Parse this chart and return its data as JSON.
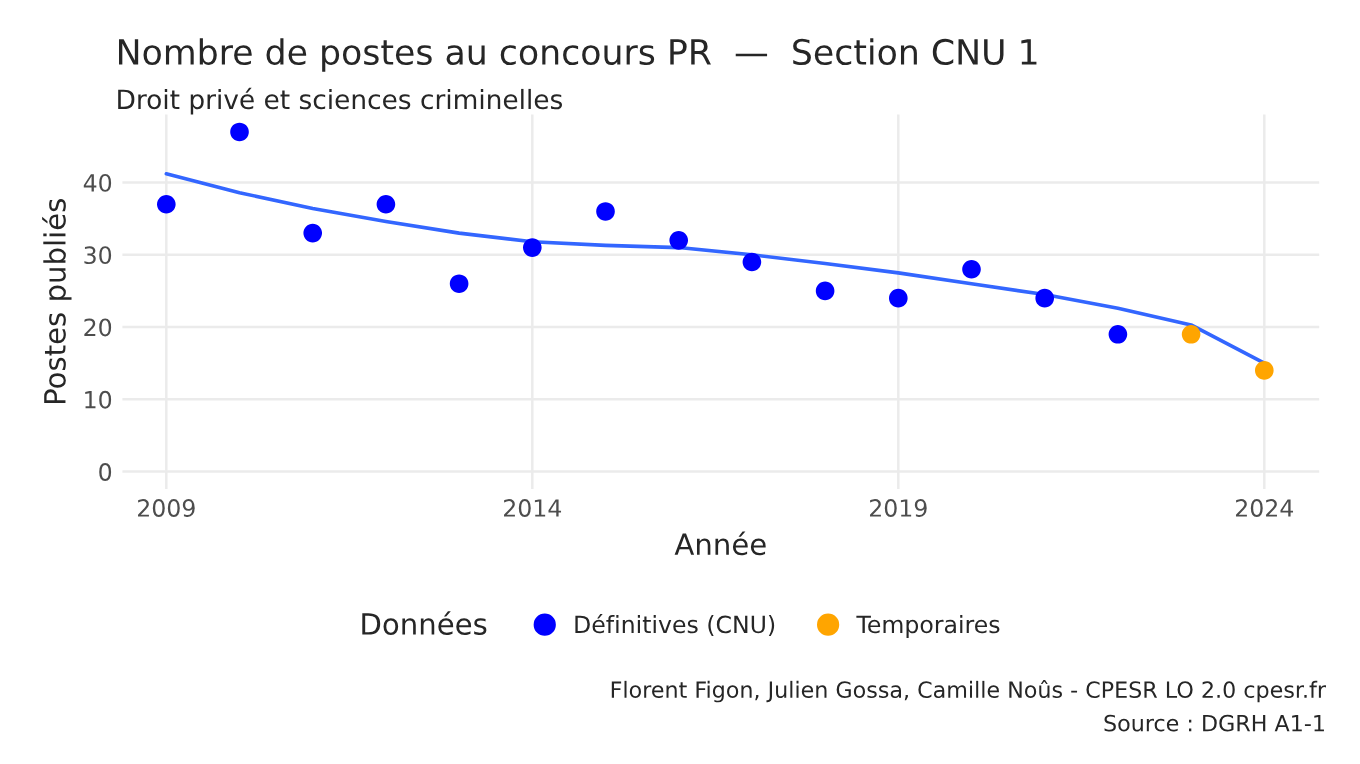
{
  "chart_data": {
    "type": "scatter",
    "title": "Nombre de postes au concours PR  —  Section CNU 1",
    "subtitle": "Droit privé et sciences criminelles",
    "xlabel": "Année",
    "ylabel": "Postes publiés",
    "legend_title": "Données",
    "series": [
      {
        "name": "Définitives (CNU)",
        "color": "#0000ff",
        "marker": "circle",
        "x": [
          2009,
          2010,
          2011,
          2012,
          2013,
          2014,
          2015,
          2016,
          2017,
          2018,
          2019,
          2020,
          2021,
          2022
        ],
        "values": [
          37,
          47,
          33,
          37,
          26,
          31,
          36,
          32,
          29,
          25,
          24,
          28,
          24,
          19
        ]
      },
      {
        "name": "Temporaires",
        "color": "#ffa500",
        "marker": "circle",
        "x": [
          2023,
          2024
        ],
        "values": [
          19,
          14
        ]
      },
      {
        "type": "line",
        "color": "#3366ff",
        "x": [
          2009,
          2010,
          2011,
          2012,
          2013,
          2014,
          2015,
          2016,
          2017,
          2018,
          2019,
          2020,
          2021,
          2022,
          2023,
          2024
        ],
        "values": [
          41.2,
          38.6,
          36.4,
          34.6,
          33.0,
          31.8,
          31.3,
          31.0,
          30.0,
          28.8,
          27.5,
          26.0,
          24.5,
          22.6,
          20.3,
          15.0
        ]
      }
    ],
    "xlim": [
      2008.4,
      2024.75
    ],
    "xticks": [
      2009,
      2014,
      2019,
      2024
    ],
    "ylim": [
      -2.4,
      49.4
    ],
    "yticks": [
      0,
      10,
      20,
      30,
      40
    ],
    "grid": true,
    "legend": "bottom",
    "annotations": [
      "Florent Figon, Julien Gossa, Camille Noûs - CPESR LO 2.0 cpesr.fr",
      "Source : DGRH A1-1"
    ]
  }
}
